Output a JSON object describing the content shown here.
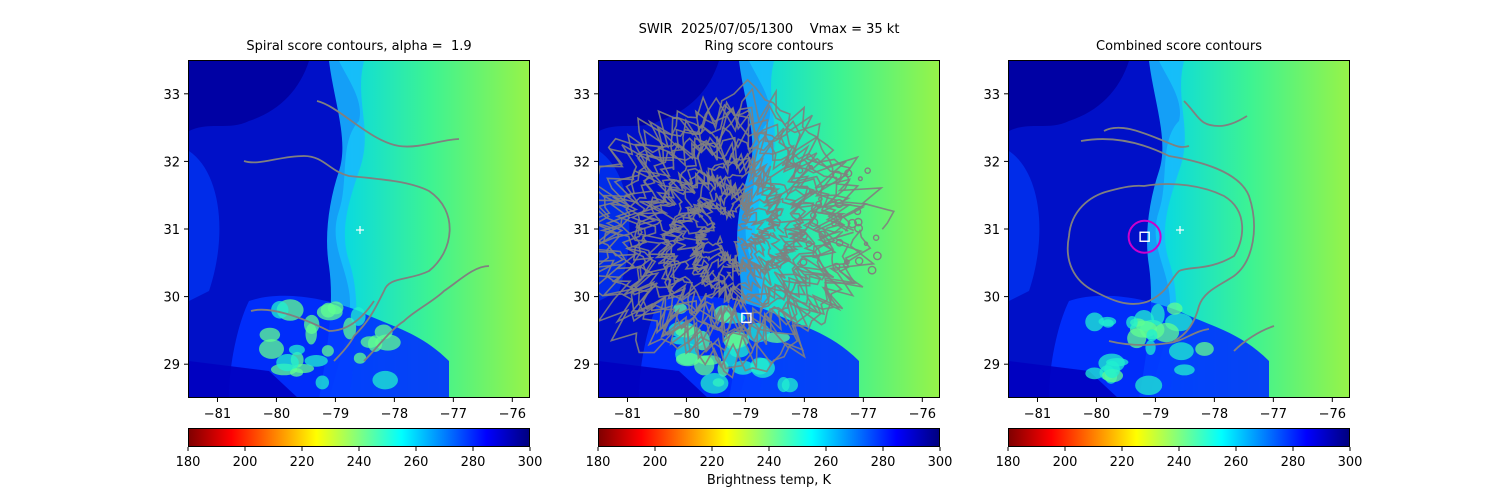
{
  "figure": {
    "suptitle_line1": "SWIR  2025/07/05/1300    Vmax = 35 kt",
    "colorbar_label": "Brightness temp, K"
  },
  "panels": [
    {
      "title": "Spiral score contours, alpha =  1.9",
      "marker": "plus"
    },
    {
      "title": "Ring score contours",
      "marker": "square"
    },
    {
      "title": "Combined score contours",
      "marker": "square-circle"
    }
  ],
  "chart_data": [
    {
      "type": "heatmap",
      "title": "Spiral score contours, alpha =  1.9",
      "xlabel": "",
      "ylabel": "",
      "xlim": [
        -81.5,
        -75.7
      ],
      "ylim": [
        28.5,
        33.5
      ],
      "xticks": [
        -81,
        -80,
        -79,
        -78,
        -77,
        -76
      ],
      "yticks": [
        29,
        30,
        31,
        32,
        33
      ],
      "center_marker": {
        "lon": -78.6,
        "lat": 31.0,
        "symbol": "+",
        "color": "#ffffff"
      },
      "colorbar": {
        "min": 180,
        "max": 300,
        "ticks": [
          180,
          200,
          220,
          240,
          260,
          280,
          300
        ],
        "colormap": "jet_r"
      }
    },
    {
      "type": "heatmap",
      "title": "Ring score contours",
      "xlabel": "",
      "ylabel": "",
      "xlim": [
        -81.5,
        -75.7
      ],
      "ylim": [
        28.5,
        33.5
      ],
      "xticks": [
        -81,
        -80,
        -79,
        -78,
        -77,
        -76
      ],
      "yticks": [
        29,
        30,
        31,
        32,
        33
      ],
      "center_marker": {
        "lon": -79.0,
        "lat": 29.7,
        "symbol": "square",
        "color": "#ffffff"
      },
      "colorbar": {
        "min": 180,
        "max": 300,
        "ticks": [
          180,
          200,
          220,
          240,
          260,
          280,
          300
        ],
        "colormap": "jet_r",
        "label": "Brightness temp, K"
      }
    },
    {
      "type": "heatmap",
      "title": "Combined score contours",
      "xlabel": "",
      "ylabel": "",
      "xlim": [
        -81.5,
        -75.7
      ],
      "ylim": [
        28.5,
        33.5
      ],
      "xticks": [
        -81,
        -80,
        -79,
        -78,
        -77,
        -76
      ],
      "yticks": [
        29,
        30,
        31,
        32,
        33
      ],
      "center_marker": {
        "lon": -79.2,
        "lat": 30.9,
        "symbol": "square",
        "color": "#ffffff"
      },
      "circle_marker": {
        "lon": -79.2,
        "lat": 30.9,
        "color": "#cc00cc"
      },
      "first_guess_marker": {
        "lon": -78.6,
        "lat": 31.0,
        "symbol": "+",
        "color": "#ffffff"
      },
      "colorbar": {
        "min": 180,
        "max": 300,
        "ticks": [
          180,
          200,
          220,
          240,
          260,
          280,
          300
        ],
        "colormap": "jet_r"
      }
    }
  ],
  "colors": {
    "contour": "#808080",
    "colormap_stops": [
      "#800000",
      "#ff0000",
      "#ff8000",
      "#ffff00",
      "#80ff80",
      "#00ffff",
      "#0080ff",
      "#0000ff",
      "#000080"
    ]
  }
}
